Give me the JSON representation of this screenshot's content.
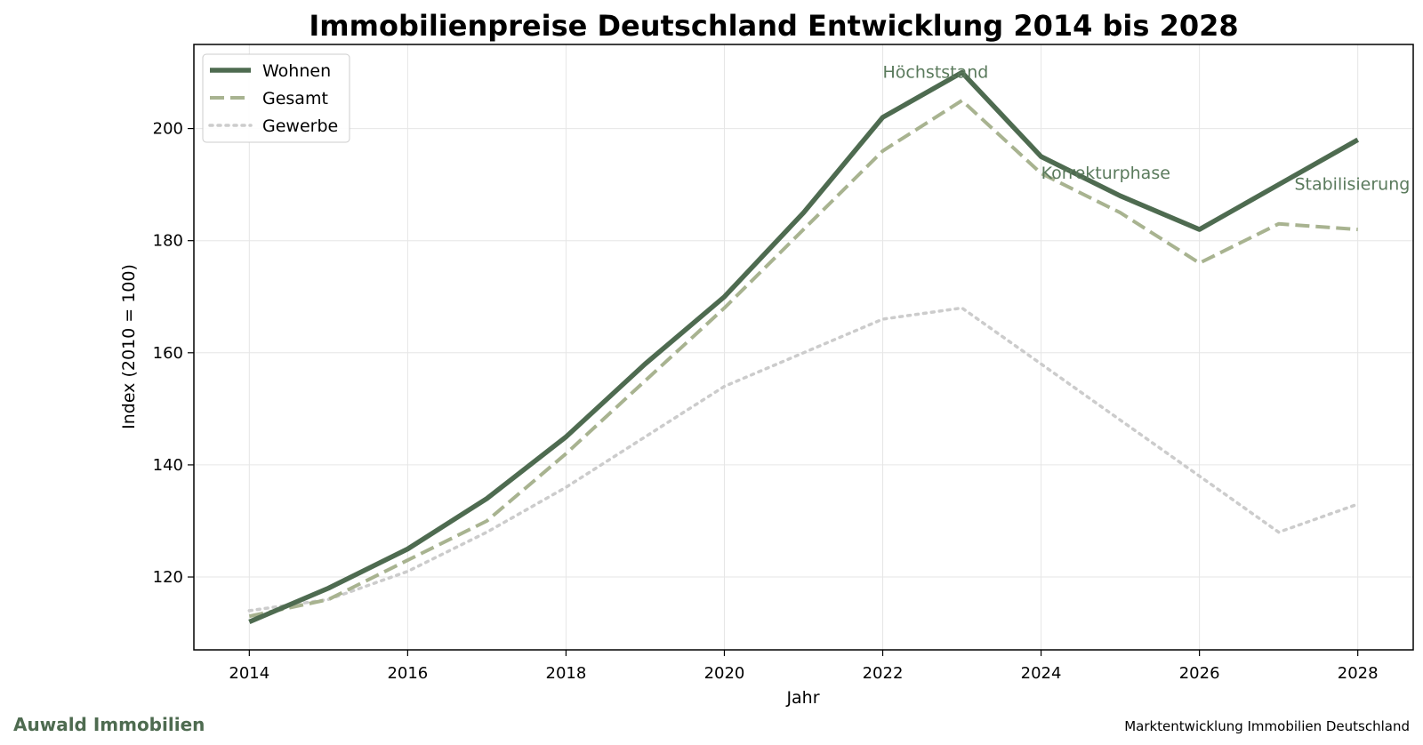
{
  "chart_data": {
    "type": "line",
    "title": "Immobilienpreise Deutschland Entwicklung 2014 bis 2028",
    "xlabel": "Jahr",
    "ylabel": "Index (2010 = 100)",
    "x": [
      2014,
      2015,
      2016,
      2017,
      2018,
      2019,
      2020,
      2021,
      2022,
      2023,
      2024,
      2025,
      2026,
      2027,
      2028
    ],
    "xlim": [
      2013.3,
      2028.7
    ],
    "ylim": [
      107,
      215
    ],
    "xticks": [
      2014,
      2016,
      2018,
      2020,
      2022,
      2024,
      2026,
      2028
    ],
    "yticks": [
      120,
      140,
      160,
      180,
      200
    ],
    "grid": true,
    "legend_position": "top-left",
    "series": [
      {
        "name": "Wohnen",
        "style": "solid",
        "color": "#4e6b50",
        "values": [
          112,
          118,
          125,
          134,
          145,
          158,
          170,
          185,
          202,
          210,
          195,
          188,
          182,
          190,
          198
        ]
      },
      {
        "name": "Gesamt",
        "style": "dashed",
        "color": "#a8b390",
        "values": [
          113,
          116,
          123,
          130,
          142,
          155,
          168,
          182,
          196,
          205,
          192,
          185,
          176,
          183,
          182
        ]
      },
      {
        "name": "Gewerbe",
        "style": "dotted",
        "color": "#cccccc",
        "values": [
          114,
          116,
          121,
          128,
          136,
          145,
          154,
          160,
          166,
          168,
          158,
          148,
          138,
          128,
          133
        ]
      }
    ],
    "annotations": [
      {
        "text": "Höchststand",
        "x": 2022.0,
        "y": 210
      },
      {
        "text": "Korrekturphase",
        "x": 2024.0,
        "y": 192
      },
      {
        "text": "Stabilisierung",
        "x": 2027.2,
        "y": 190
      }
    ]
  },
  "brand": {
    "name": "Auwald Immobilien",
    "color": "#4e6b50"
  },
  "footer": {
    "text": "Marktentwicklung Immobilien Deutschland"
  }
}
